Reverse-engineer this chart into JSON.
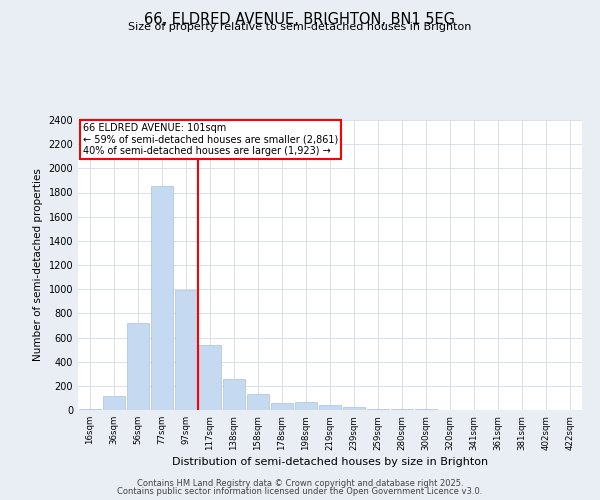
{
  "title": "66, ELDRED AVENUE, BRIGHTON, BN1 5EG",
  "subtitle": "Size of property relative to semi-detached houses in Brighton",
  "xlabel": "Distribution of semi-detached houses by size in Brighton",
  "ylabel": "Number of semi-detached properties",
  "bar_color": "#c5d9f0",
  "bar_edge_color": "#a8c4e0",
  "categories": [
    "16sqm",
    "36sqm",
    "56sqm",
    "77sqm",
    "97sqm",
    "117sqm",
    "138sqm",
    "158sqm",
    "178sqm",
    "198sqm",
    "219sqm",
    "239sqm",
    "259sqm",
    "280sqm",
    "300sqm",
    "320sqm",
    "341sqm",
    "361sqm",
    "381sqm",
    "402sqm",
    "422sqm"
  ],
  "values": [
    5,
    120,
    720,
    1850,
    990,
    540,
    255,
    130,
    60,
    70,
    40,
    25,
    10,
    5,
    5,
    2,
    2,
    1,
    1,
    1,
    1
  ],
  "ylim": [
    0,
    2400
  ],
  "yticks": [
    0,
    200,
    400,
    600,
    800,
    1000,
    1200,
    1400,
    1600,
    1800,
    2000,
    2200,
    2400
  ],
  "property_line_x": 4.5,
  "property_label": "66 ELDRED AVENUE: 101sqm",
  "annotation_line1": "← 59% of semi-detached houses are smaller (2,861)",
  "annotation_line2": "40% of semi-detached houses are larger (1,923) →",
  "footer_line1": "Contains HM Land Registry data © Crown copyright and database right 2025.",
  "footer_line2": "Contains public sector information licensed under the Open Government Licence v3.0.",
  "background_color": "#e8eef4",
  "plot_bg_color": "#ffffff",
  "grid_color": "#c8d4e0",
  "title_fontsize": 10.5,
  "subtitle_fontsize": 8.0
}
